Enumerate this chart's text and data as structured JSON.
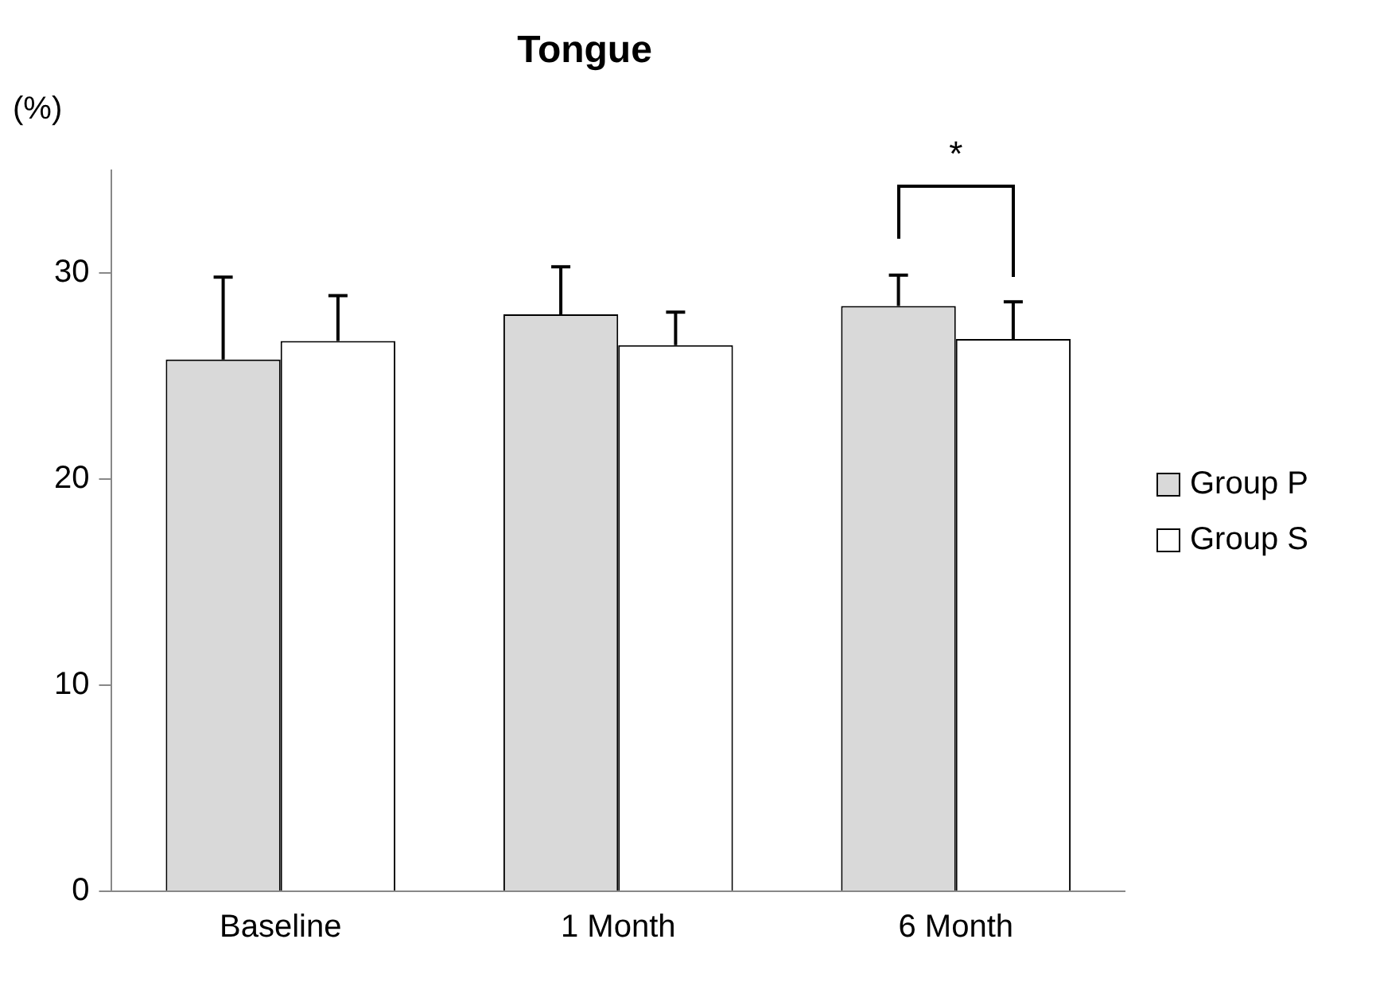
{
  "chart_data": {
    "type": "bar",
    "title": "Tongue",
    "ylabel": "(%)",
    "categories": [
      "Baseline",
      "1 Month",
      "6 Month"
    ],
    "series": [
      {
        "name": "Group P",
        "color": "#d9d9d9",
        "values": [
          25.8,
          28.0,
          28.4
        ],
        "errors": [
          [
            25.8,
            29.8
          ],
          [
            28.0,
            30.3
          ],
          [
            28.4,
            29.9
          ]
        ]
      },
      {
        "name": "Group S",
        "color": "#ffffff",
        "values": [
          26.7,
          26.5,
          26.8
        ],
        "errors": [
          [
            26.7,
            28.9
          ],
          [
            26.5,
            28.1
          ],
          [
            26.8,
            28.6
          ]
        ]
      }
    ],
    "ylim": [
      0,
      35
    ],
    "yticks": [
      0,
      10,
      20,
      30
    ],
    "grid": false,
    "legend": "right",
    "annotations": [
      "*"
    ]
  }
}
